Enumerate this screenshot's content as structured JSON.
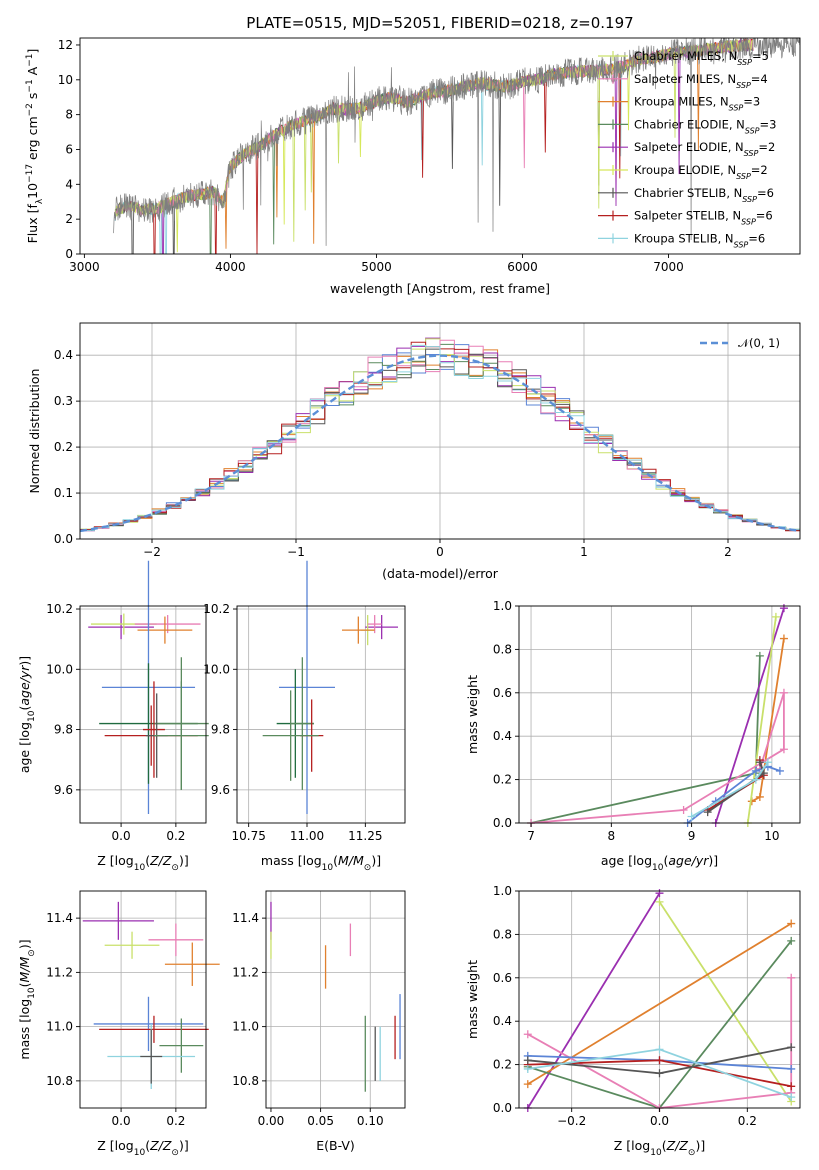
{
  "figure": {
    "title": "PLATE=0515, MJD=52051, FIBERID=0218, z=0.197"
  },
  "models": [
    {
      "name": "Chabrier MILES, N$_{SSP}$=5",
      "label_main": "Chabrier MILES, N",
      "label_sub": "SSP",
      "label_tail": "=5",
      "color": "#c9e06a"
    },
    {
      "name": "Salpeter MILES, N$_{SSP}$=4",
      "label_main": "Salpeter MILES, N",
      "label_sub": "SSP",
      "label_tail": "=4",
      "color": "#e87fb5"
    },
    {
      "name": "Kroupa MILES, N$_{SSP}$=3",
      "label_main": "Kroupa MILES, N",
      "label_sub": "SSP",
      "label_tail": "=3",
      "color": "#e0802e"
    },
    {
      "name": "Chabrier ELODIE, N$_{SSP}$=3",
      "label_main": "Chabrier ELODIE, N",
      "label_sub": "SSP",
      "label_tail": "=3",
      "color": "#5a8a5e"
    },
    {
      "name": "Salpeter ELODIE, N$_{SSP}$=2",
      "label_main": "Salpeter ELODIE, N",
      "label_sub": "SSP",
      "label_tail": "=2",
      "color": "#9a2fb0"
    },
    {
      "name": "Kroupa ELODIE, N$_{SSP}$=2",
      "label_main": "Kroupa ELODIE, N",
      "label_sub": "SSP",
      "label_tail": "=2",
      "color": "#d6e85a"
    },
    {
      "name": "Chabrier STELIB, N$_{SSP}$=6",
      "label_main": "Chabrier STELIB, N",
      "label_sub": "SSP",
      "label_tail": "=6",
      "color": "#555555"
    },
    {
      "name": "Salpeter STELIB, N$_{SSP}$=6",
      "label_main": "Salpeter STELIB, N",
      "label_sub": "SSP",
      "label_tail": "=6",
      "color": "#b52020"
    },
    {
      "name": "Kroupa STELIB, N$_{SSP}$=6",
      "label_main": "Kroupa STELIB, N",
      "label_sub": "SSP",
      "label_tail": "=6",
      "color": "#8fd3df"
    }
  ],
  "chart_data": [
    {
      "id": "spectrum",
      "type": "line",
      "xlabel": "wavelength [Angstrom, rest frame]",
      "ylabel": "Flux [f$_\\lambda$10$^{-17}$ erg cm$^{-2}$ s$^{-1}$ A$^{-1}$]",
      "ylabel_parts": {
        "a": "Flux [f",
        "b": "λ",
        "c": "10",
        "d": "−17",
        "e": " erg cm",
        "f": "−2",
        "g": " s",
        "h": "−1",
        "i": " A",
        "j": "−1",
        "k": "]"
      },
      "xlim": [
        2970,
        7900
      ],
      "ylim": [
        0,
        12.4
      ],
      "xticks": [
        3000,
        4000,
        5000,
        6000,
        7000
      ],
      "yticks": [
        0,
        2,
        4,
        6,
        8,
        10,
        12
      ],
      "continuum": [
        [
          3200,
          2.0
        ],
        [
          3220,
          2.5
        ],
        [
          3300,
          2.8
        ],
        [
          3400,
          2.5
        ],
        [
          3500,
          2.6
        ],
        [
          3600,
          3.0
        ],
        [
          3700,
          3.3
        ],
        [
          3800,
          3.4
        ],
        [
          3880,
          3.6
        ],
        [
          3950,
          3.0
        ],
        [
          4000,
          5.0
        ],
        [
          4100,
          5.8
        ],
        [
          4200,
          6.2
        ],
        [
          4300,
          6.8
        ],
        [
          4400,
          7.3
        ],
        [
          4500,
          7.6
        ],
        [
          4600,
          7.9
        ],
        [
          4700,
          8.3
        ],
        [
          4800,
          8.3
        ],
        [
          4900,
          8.4
        ],
        [
          5000,
          8.8
        ],
        [
          5100,
          9.0
        ],
        [
          5200,
          8.7
        ],
        [
          5300,
          9.0
        ],
        [
          5400,
          9.3
        ],
        [
          5500,
          9.4
        ],
        [
          5600,
          9.6
        ],
        [
          5700,
          9.8
        ],
        [
          5800,
          9.7
        ],
        [
          5900,
          9.6
        ],
        [
          6000,
          9.9
        ],
        [
          6100,
          10.0
        ],
        [
          6200,
          10.3
        ],
        [
          6300,
          10.4
        ],
        [
          6400,
          10.5
        ],
        [
          6500,
          10.5
        ],
        [
          6600,
          10.6
        ],
        [
          6700,
          10.8
        ],
        [
          6800,
          11.2
        ],
        [
          6900,
          11.3
        ],
        [
          7000,
          11.5
        ],
        [
          7100,
          11.6
        ],
        [
          7200,
          11.7
        ],
        [
          7300,
          11.8
        ],
        [
          7400,
          11.9
        ],
        [
          7500,
          12.0
        ],
        [
          7550,
          12.0
        ]
      ]
    },
    {
      "id": "residuals",
      "type": "histogram",
      "xlabel": "(data-model)/error",
      "ylabel": "Normed distribution",
      "legend": "$\\mathcal{N}(0,1)$",
      "legend_text": "𝒩(0, 1)",
      "xlim": [
        -2.5,
        2.5
      ],
      "ylim": [
        0,
        0.47
      ],
      "xticks": [
        -2,
        -1,
        0,
        1,
        2
      ],
      "yticks": [
        0.0,
        0.1,
        0.2,
        0.3,
        0.4
      ],
      "bin_width": 0.1
    },
    {
      "id": "age_vs_Z",
      "type": "errorbar",
      "xlabel": "Z [log$_{10}$($Z/Z_\\odot$)]",
      "ylabel": "age  [log$_{10}$($age/yr$)]",
      "xlim": [
        -0.15,
        0.31
      ],
      "ylim": [
        9.49,
        10.21
      ],
      "xticks": [
        0.0,
        0.2
      ],
      "yticks": [
        9.6,
        9.8,
        10.0,
        10.2
      ],
      "points": [
        {
          "x": 0.0,
          "xerr": 0.12,
          "y": 10.14,
          "yerr": 0.04,
          "c": "#9a2fb0"
        },
        {
          "x": 0.01,
          "xerr": 0.12,
          "y": 10.15,
          "yerr": 0.035,
          "c": "#c9e06a"
        },
        {
          "x": 0.17,
          "xerr": 0.12,
          "y": 10.15,
          "yerr": 0.03,
          "c": "#e87fb5"
        },
        {
          "x": 0.16,
          "xerr": 0.1,
          "y": 10.13,
          "yerr": 0.045,
          "c": "#e0802e"
        },
        {
          "x": 0.1,
          "xerr": 0.17,
          "y": 9.94,
          "yerr": 0.42,
          "c": "#5b84d6"
        },
        {
          "x": 0.1,
          "xerr": 0.18,
          "y": 9.82,
          "yerr": 0.2,
          "c": "#1f6b3f"
        },
        {
          "x": 0.22,
          "xerr": 0.1,
          "y": 9.82,
          "yerr": 0.22,
          "c": "#5a8a5e"
        },
        {
          "x": 0.12,
          "xerr": 0.04,
          "y": 9.8,
          "yerr": 0.16,
          "c": "#b52020"
        },
        {
          "x": 0.11,
          "xerr": 0.17,
          "y": 9.78,
          "yerr": 0.1,
          "c": "#b52020"
        },
        {
          "x": 0.13,
          "xerr": 0.04,
          "y": 9.78,
          "yerr": 0.14,
          "c": "#555555"
        },
        {
          "x": 0.22,
          "xerr": 0.1,
          "y": 9.78,
          "yerr": 0.18,
          "c": "#5a8a5e"
        }
      ]
    },
    {
      "id": "age_vs_mass",
      "type": "errorbar",
      "xlabel": "mass [log$_{10}$($M/M_\\odot$)]",
      "ylabel": "",
      "xlim": [
        10.7,
        11.42
      ],
      "ylim": [
        9.49,
        10.21
      ],
      "xticks": [
        10.75,
        11.0,
        11.25
      ],
      "yticks": [
        9.6,
        9.8,
        10.0,
        10.2
      ],
      "points": [
        {
          "x": 11.32,
          "xerr": 0.07,
          "y": 10.14,
          "yerr": 0.04,
          "c": "#9a2fb0"
        },
        {
          "x": 11.26,
          "xerr": 0.03,
          "y": 10.13,
          "yerr": 0.05,
          "c": "#c9e06a"
        },
        {
          "x": 11.29,
          "xerr": 0.03,
          "y": 10.15,
          "yerr": 0.03,
          "c": "#e87fb5"
        },
        {
          "x": 11.22,
          "xerr": 0.07,
          "y": 10.13,
          "yerr": 0.045,
          "c": "#e0802e"
        },
        {
          "x": 11.0,
          "xerr": 0.12,
          "y": 9.94,
          "yerr": 0.42,
          "c": "#5b84d6"
        },
        {
          "x": 10.95,
          "xerr": 0.08,
          "y": 9.82,
          "yerr": 0.18,
          "c": "#1f6b3f"
        },
        {
          "x": 10.98,
          "xerr": 0.05,
          "y": 9.82,
          "yerr": 0.22,
          "c": "#5a8a5e"
        },
        {
          "x": 11.02,
          "xerr": 0.05,
          "y": 9.78,
          "yerr": 0.12,
          "c": "#b52020"
        },
        {
          "x": 10.93,
          "xerr": 0.12,
          "y": 9.78,
          "yerr": 0.15,
          "c": "#5a8a5e"
        }
      ]
    },
    {
      "id": "weight_vs_age",
      "type": "line",
      "xlabel": "age  [log$_{10}$($age/yr$)]",
      "ylabel": "mass weight",
      "xlim": [
        6.85,
        10.35
      ],
      "ylim": [
        0,
        1
      ],
      "xticks": [
        7,
        8,
        9,
        10
      ],
      "yticks": [
        0.0,
        0.2,
        0.4,
        0.6,
        0.8,
        1.0
      ],
      "series": [
        {
          "c": "#5a8a5e",
          "pts": [
            [
              7.0,
              0.0
            ],
            [
              9.8,
              0.23
            ],
            [
              9.85,
              0.77
            ]
          ]
        },
        {
          "c": "#9a2fb0",
          "pts": [
            [
              9.3,
              0.0
            ],
            [
              10.15,
              0.99
            ]
          ]
        },
        {
          "c": "#e0802e",
          "pts": [
            [
              9.75,
              0.1
            ],
            [
              9.85,
              0.12
            ],
            [
              10.15,
              0.85
            ]
          ]
        },
        {
          "c": "#c9e06a",
          "pts": [
            [
              9.7,
              0.0
            ],
            [
              10.05,
              0.95
            ]
          ]
        },
        {
          "c": "#e87fb5",
          "pts": [
            [
              7.0,
              0.0
            ],
            [
              8.9,
              0.06
            ],
            [
              10.15,
              0.34
            ],
            [
              10.15,
              0.6
            ],
            [
              9.85,
              0.25
            ]
          ]
        },
        {
          "c": "#5b84d6",
          "pts": [
            [
              8.95,
              0.0
            ],
            [
              9.3,
              0.1
            ],
            [
              9.8,
              0.24
            ],
            [
              9.95,
              0.26
            ],
            [
              10.1,
              0.24
            ]
          ]
        },
        {
          "c": "#b52020",
          "pts": [
            [
              9.2,
              0.06
            ],
            [
              9.9,
              0.22
            ],
            [
              9.85,
              0.29
            ]
          ]
        },
        {
          "c": "#555555",
          "pts": [
            [
              9.2,
              0.05
            ],
            [
              9.9,
              0.23
            ],
            [
              9.85,
              0.28
            ]
          ]
        },
        {
          "c": "#8fd3df",
          "pts": [
            [
              9.0,
              0.03
            ],
            [
              9.8,
              0.2
            ],
            [
              9.95,
              0.28
            ]
          ]
        }
      ]
    },
    {
      "id": "mass_vs_Z",
      "type": "errorbar",
      "xlabel": "Z [log$_{10}$($Z/Z_\\odot$)]",
      "ylabel": "mass [log$_{10}$($M/M_\\odot$)]",
      "xlim": [
        -0.15,
        0.31
      ],
      "ylim": [
        10.7,
        11.5
      ],
      "xticks": [
        0.0,
        0.2
      ],
      "yticks": [
        10.8,
        11.0,
        11.2,
        11.4
      ],
      "points": [
        {
          "x": -0.01,
          "xerr": 0.13,
          "y": 11.39,
          "yerr": 0.07,
          "c": "#9a2fb0"
        },
        {
          "x": 0.04,
          "xerr": 0.1,
          "y": 11.3,
          "yerr": 0.05,
          "c": "#c9e06a"
        },
        {
          "x": 0.2,
          "xerr": 0.1,
          "y": 11.32,
          "yerr": 0.06,
          "c": "#e87fb5"
        },
        {
          "x": 0.26,
          "xerr": 0.1,
          "y": 11.23,
          "yerr": 0.08,
          "c": "#e0802e"
        },
        {
          "x": 0.1,
          "xerr": 0.2,
          "y": 11.01,
          "yerr": 0.1,
          "c": "#5b84d6"
        },
        {
          "x": 0.12,
          "xerr": 0.2,
          "y": 10.99,
          "yerr": 0.05,
          "c": "#b52020"
        },
        {
          "x": 0.22,
          "xerr": 0.08,
          "y": 10.93,
          "yerr": 0.1,
          "c": "#5a8a5e"
        },
        {
          "x": 0.11,
          "xerr": 0.16,
          "y": 10.89,
          "yerr": 0.12,
          "c": "#8fd3df"
        },
        {
          "x": 0.11,
          "xerr": 0.04,
          "y": 10.89,
          "yerr": 0.1,
          "c": "#555555"
        }
      ]
    },
    {
      "id": "mass_vs_ebv",
      "type": "errorbar",
      "xlabel": "E(B-V)",
      "ylabel": "",
      "xlim": [
        -0.005,
        0.135
      ],
      "ylim": [
        10.7,
        11.5
      ],
      "xticks": [
        0.0,
        0.05,
        0.1
      ],
      "yticks": [
        10.8,
        11.0,
        11.2,
        11.4
      ],
      "points": [
        {
          "x": 0.0,
          "xerr": 0,
          "y": 11.39,
          "yerr": 0.07,
          "c": "#9a2fb0"
        },
        {
          "x": 0.0,
          "xerr": 0,
          "y": 11.3,
          "yerr": 0.05,
          "c": "#c9e06a"
        },
        {
          "x": 0.08,
          "xerr": 0,
          "y": 11.32,
          "yerr": 0.06,
          "c": "#e87fb5"
        },
        {
          "x": 0.055,
          "xerr": 0,
          "y": 11.22,
          "yerr": 0.08,
          "c": "#e0802e"
        },
        {
          "x": 0.13,
          "xerr": 0,
          "y": 11.0,
          "yerr": 0.12,
          "c": "#5b84d6"
        },
        {
          "x": 0.125,
          "xerr": 0,
          "y": 10.96,
          "yerr": 0.08,
          "c": "#b52020"
        },
        {
          "x": 0.095,
          "xerr": 0,
          "y": 10.9,
          "yerr": 0.14,
          "c": "#5a8a5e"
        },
        {
          "x": 0.11,
          "xerr": 0,
          "y": 10.9,
          "yerr": 0.1,
          "c": "#8fd3df"
        },
        {
          "x": 0.105,
          "xerr": 0,
          "y": 10.9,
          "yerr": 0.1,
          "c": "#555555"
        }
      ]
    },
    {
      "id": "weight_vs_Z",
      "type": "line",
      "xlabel": "Z [log$_{10}$($Z/Z_\\odot$)]",
      "ylabel": "mass weight",
      "xlim": [
        -0.32,
        0.32
      ],
      "ylim": [
        0,
        1
      ],
      "xticks": [
        -0.2,
        0.0,
        0.2
      ],
      "yticks": [
        0.0,
        0.2,
        0.4,
        0.6,
        0.8,
        1.0
      ],
      "series": [
        {
          "c": "#9a2fb0",
          "pts": [
            [
              -0.3,
              0.0
            ],
            [
              0.0,
              0.99
            ]
          ]
        },
        {
          "c": "#c9e06a",
          "pts": [
            [
              0.0,
              0.95
            ],
            [
              0.3,
              0.03
            ]
          ]
        },
        {
          "c": "#e0802e",
          "pts": [
            [
              -0.3,
              0.11
            ],
            [
              0.3,
              0.85
            ]
          ]
        },
        {
          "c": "#5a8a5e",
          "pts": [
            [
              -0.3,
              0.19
            ],
            [
              0.0,
              0.0
            ],
            [
              0.3,
              0.77
            ]
          ]
        },
        {
          "c": "#e87fb5",
          "pts": [
            [
              -0.3,
              0.34
            ],
            [
              0.0,
              0.0
            ],
            [
              0.3,
              0.07
            ],
            [
              0.3,
              0.6
            ]
          ]
        },
        {
          "c": "#5b84d6",
          "pts": [
            [
              -0.3,
              0.24
            ],
            [
              0.0,
              0.22
            ],
            [
              0.3,
              0.18
            ]
          ]
        },
        {
          "c": "#b52020",
          "pts": [
            [
              -0.3,
              0.2
            ],
            [
              0.0,
              0.22
            ],
            [
              0.3,
              0.1
            ]
          ]
        },
        {
          "c": "#555555",
          "pts": [
            [
              -0.3,
              0.22
            ],
            [
              0.0,
              0.16
            ],
            [
              0.3,
              0.28
            ]
          ]
        },
        {
          "c": "#8fd3df",
          "pts": [
            [
              -0.3,
              0.18
            ],
            [
              0.0,
              0.27
            ],
            [
              0.3,
              0.05
            ]
          ]
        }
      ]
    }
  ]
}
